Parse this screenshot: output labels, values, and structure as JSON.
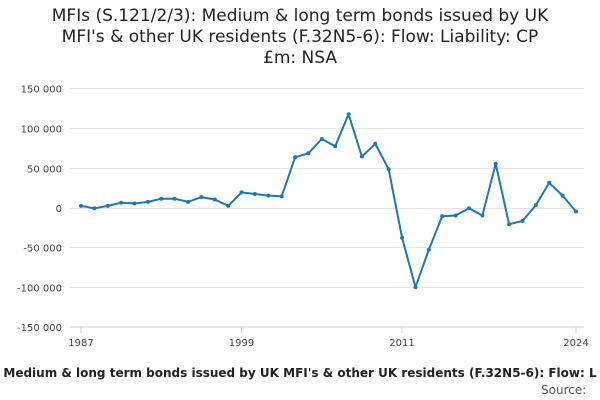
{
  "chart_data": {
    "type": "line",
    "title_lines": [
      "MFIs (S.121/2/3): Medium & long term bonds issued by UK",
      "MFI's & other UK residents (F.32N5-6): Flow: Liability: CP",
      "£m: NSA"
    ],
    "x_tick_labels": [
      "1987",
      "1999",
      "2011",
      "2024"
    ],
    "y_tick_labels": [
      "150 000",
      "100 000",
      "50 000",
      "0",
      "-50 000",
      "-100 000",
      "-150 000"
    ],
    "ylim": [
      -150000,
      150000
    ],
    "xlim": [
      1987,
      2024
    ],
    "y_ticks": [
      150000,
      100000,
      50000,
      0,
      -50000,
      -100000,
      -150000
    ],
    "x_ticks": [
      1987,
      1999,
      2011,
      2024
    ],
    "grid": true,
    "series": [
      {
        "color": "#1f77b4",
        "x": [
          1987,
          1988,
          1989,
          1990,
          1991,
          1992,
          1993,
          1994,
          1995,
          1996,
          1997,
          1998,
          1999,
          2000,
          2001,
          2002,
          2003,
          2004,
          2005,
          2006,
          2007,
          2008,
          2009,
          2010,
          2011,
          2012,
          2013,
          2014,
          2015,
          2016,
          2017,
          2018,
          2019,
          2020,
          2021,
          2022,
          2023,
          2024
        ],
        "values": [
          2000,
          -1000,
          2000,
          6000,
          5000,
          7000,
          11000,
          11000,
          7000,
          13000,
          10000,
          2000,
          19000,
          17000,
          15000,
          14000,
          63000,
          68000,
          86000,
          77000,
          117000,
          64000,
          80000,
          48000,
          -38000,
          -100000,
          -53000,
          -11000,
          -10000,
          -1000,
          -10000,
          55000,
          -21000,
          -17000,
          3000,
          31000,
          15000,
          -5000
        ]
      }
    ],
    "footer_series_label": "Medium & long term bonds issued by UK MFI's & other UK residents (F.32N5-6): Flow: L",
    "footer_source_label": "Source: "
  }
}
